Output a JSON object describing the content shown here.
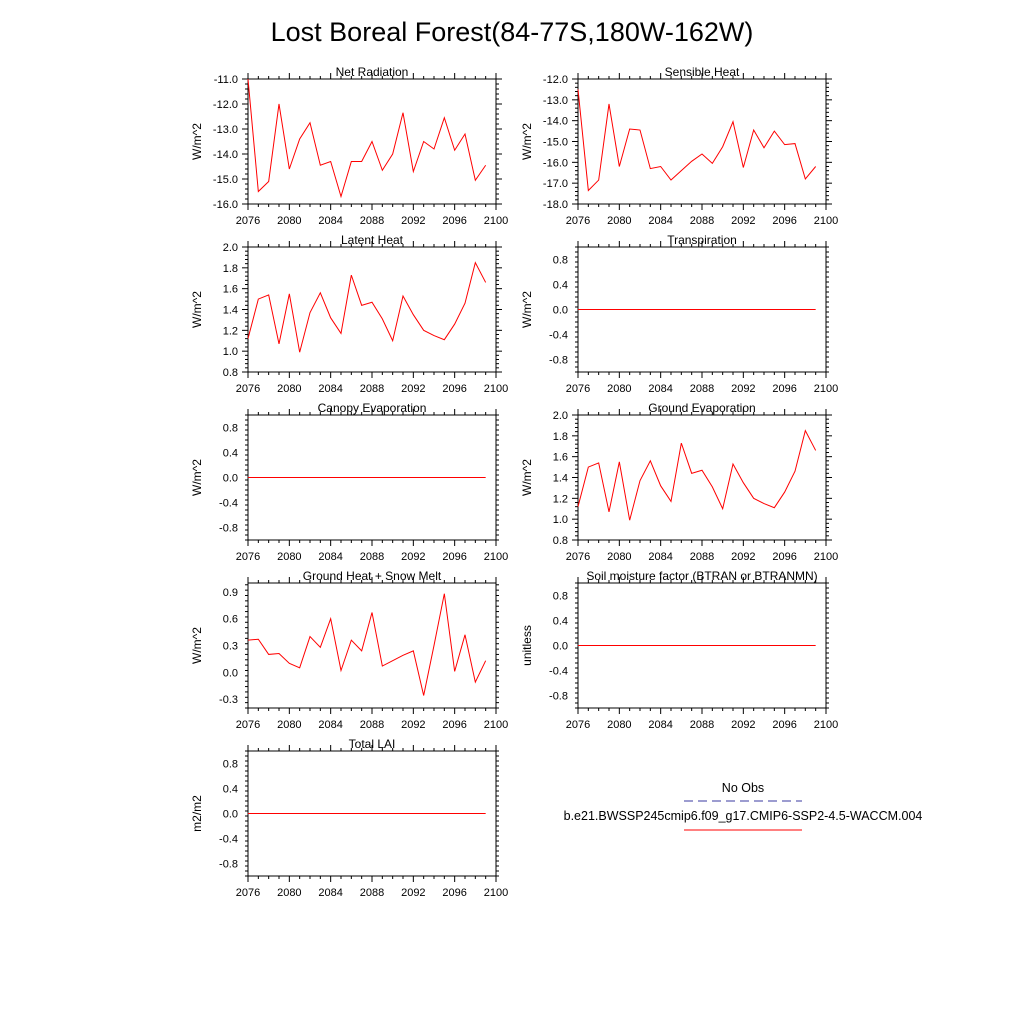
{
  "figure": {
    "title": "Lost Boreal Forest(84-77S,180W-162W)"
  },
  "legend": {
    "items": [
      {
        "label": "No Obs",
        "color": "#3a3aa0",
        "style": "dashed"
      },
      {
        "label": "b.e21.BWSSP245cmip6.f09_g17.CMIP6-SSP2-4.5-WACCM.004",
        "color": "#ff0000",
        "style": "solid"
      }
    ]
  },
  "chart_data": [
    {
      "type": "line",
      "title": "Net Radiation",
      "ylabel": "W/m^2",
      "xlim": [
        2076,
        2100
      ],
      "ylim": [
        -16,
        -11
      ],
      "xticks": [
        2076,
        2080,
        2084,
        2088,
        2092,
        2096,
        2100
      ],
      "xtick_labels": [
        "2076",
        "2080",
        "2084",
        "2088",
        "2092",
        "2096",
        "2100"
      ],
      "yticks": [
        -16,
        -15,
        -14,
        -13,
        -12,
        -11
      ],
      "ytick_labels": [
        "-16.0",
        "-15.0",
        "-14.0",
        "-13.0",
        "-12.0",
        "-11.0"
      ],
      "series": [
        {
          "color": "#ff0000",
          "x": [
            2076,
            2077,
            2078,
            2079,
            2080,
            2081,
            2082,
            2083,
            2084,
            2085,
            2086,
            2087,
            2088,
            2089,
            2090,
            2091,
            2092,
            2093,
            2094,
            2095,
            2096,
            2097,
            2098,
            2099
          ],
          "y": [
            -11.0,
            -15.5,
            -15.1,
            -12.0,
            -14.6,
            -13.4,
            -12.75,
            -14.45,
            -14.3,
            -15.7,
            -14.3,
            -14.3,
            -13.5,
            -14.65,
            -14.0,
            -12.35,
            -14.7,
            -13.5,
            -13.8,
            -12.55,
            -13.85,
            -13.2,
            -15.05,
            -14.45
          ]
        }
      ]
    },
    {
      "type": "line",
      "title": "Sensible Heat",
      "ylabel": "W/m^2",
      "xlim": [
        2076,
        2100
      ],
      "ylim": [
        -18,
        -12
      ],
      "xticks": [
        2076,
        2080,
        2084,
        2088,
        2092,
        2096,
        2100
      ],
      "xtick_labels": [
        "2076",
        "2080",
        "2084",
        "2088",
        "2092",
        "2096",
        "2100"
      ],
      "yticks": [
        -18,
        -17,
        -16,
        -15,
        -14,
        -13,
        -12
      ],
      "ytick_labels": [
        "-18.0",
        "-17.0",
        "-16.0",
        "-15.0",
        "-14.0",
        "-13.0",
        "-12.0"
      ],
      "series": [
        {
          "color": "#ff0000",
          "x": [
            2076,
            2077,
            2078,
            2079,
            2080,
            2081,
            2082,
            2083,
            2084,
            2085,
            2086,
            2087,
            2088,
            2089,
            2090,
            2091,
            2092,
            2093,
            2094,
            2095,
            2096,
            2097,
            2098,
            2099
          ],
          "y": [
            -12.5,
            -17.35,
            -16.85,
            -13.2,
            -16.2,
            -14.4,
            -14.45,
            -16.3,
            -16.2,
            -16.85,
            -16.4,
            -15.95,
            -15.6,
            -16.05,
            -15.25,
            -14.05,
            -16.25,
            -14.45,
            -15.3,
            -14.5,
            -15.15,
            -15.1,
            -16.8,
            -16.2
          ]
        }
      ]
    },
    {
      "type": "line",
      "title": "Latent Heat",
      "ylabel": "W/m^2",
      "xlim": [
        2076,
        2100
      ],
      "ylim": [
        0.8,
        2.0
      ],
      "xticks": [
        2076,
        2080,
        2084,
        2088,
        2092,
        2096,
        2100
      ],
      "xtick_labels": [
        "2076",
        "2080",
        "2084",
        "2088",
        "2092",
        "2096",
        "2100"
      ],
      "yticks": [
        0.8,
        1.0,
        1.2,
        1.4,
        1.6,
        1.8,
        2.0
      ],
      "ytick_labels": [
        "0.8",
        "1.0",
        "1.2",
        "1.4",
        "1.6",
        "1.8",
        "2.0"
      ],
      "series": [
        {
          "color": "#ff0000",
          "x": [
            2076,
            2077,
            2078,
            2079,
            2080,
            2081,
            2082,
            2083,
            2084,
            2085,
            2086,
            2087,
            2088,
            2089,
            2090,
            2091,
            2092,
            2093,
            2094,
            2095,
            2096,
            2097,
            2098,
            2099
          ],
          "y": [
            1.12,
            1.5,
            1.54,
            1.07,
            1.55,
            0.99,
            1.37,
            1.56,
            1.32,
            1.17,
            1.73,
            1.44,
            1.47,
            1.31,
            1.1,
            1.53,
            1.35,
            1.2,
            1.15,
            1.11,
            1.26,
            1.46,
            1.85,
            1.66
          ]
        }
      ]
    },
    {
      "type": "line",
      "title": "Transpiration",
      "ylabel": "W/m^2",
      "xlim": [
        2076,
        2100
      ],
      "ylim": [
        -1.0,
        1.0
      ],
      "xticks": [
        2076,
        2080,
        2084,
        2088,
        2092,
        2096,
        2100
      ],
      "xtick_labels": [
        "2076",
        "2080",
        "2084",
        "2088",
        "2092",
        "2096",
        "2100"
      ],
      "yticks": [
        -0.8,
        -0.4,
        0.0,
        0.4,
        0.8
      ],
      "ytick_labels": [
        "-0.8",
        "-0.4",
        "0.0",
        "0.4",
        "0.8"
      ],
      "series": [
        {
          "color": "#ff0000",
          "x": [
            2076,
            2077,
            2078,
            2079,
            2080,
            2081,
            2082,
            2083,
            2084,
            2085,
            2086,
            2087,
            2088,
            2089,
            2090,
            2091,
            2092,
            2093,
            2094,
            2095,
            2096,
            2097,
            2098,
            2099
          ],
          "y": [
            0,
            0,
            0,
            0,
            0,
            0,
            0,
            0,
            0,
            0,
            0,
            0,
            0,
            0,
            0,
            0,
            0,
            0,
            0,
            0,
            0,
            0,
            0,
            0
          ]
        }
      ]
    },
    {
      "type": "line",
      "title": "Canopy Evaporation",
      "ylabel": "W/m^2",
      "xlim": [
        2076,
        2100
      ],
      "ylim": [
        -1.0,
        1.0
      ],
      "xticks": [
        2076,
        2080,
        2084,
        2088,
        2092,
        2096,
        2100
      ],
      "xtick_labels": [
        "2076",
        "2080",
        "2084",
        "2088",
        "2092",
        "2096",
        "2100"
      ],
      "yticks": [
        -0.8,
        -0.4,
        0.0,
        0.4,
        0.8
      ],
      "ytick_labels": [
        "-0.8",
        "-0.4",
        "0.0",
        "0.4",
        "0.8"
      ],
      "series": [
        {
          "color": "#ff0000",
          "x": [
            2076,
            2077,
            2078,
            2079,
            2080,
            2081,
            2082,
            2083,
            2084,
            2085,
            2086,
            2087,
            2088,
            2089,
            2090,
            2091,
            2092,
            2093,
            2094,
            2095,
            2096,
            2097,
            2098,
            2099
          ],
          "y": [
            0,
            0,
            0,
            0,
            0,
            0,
            0,
            0,
            0,
            0,
            0,
            0,
            0,
            0,
            0,
            0,
            0,
            0,
            0,
            0,
            0,
            0,
            0,
            0
          ]
        }
      ]
    },
    {
      "type": "line",
      "title": "Ground Evaporation",
      "ylabel": "W/m^2",
      "xlim": [
        2076,
        2100
      ],
      "ylim": [
        0.8,
        2.0
      ],
      "xticks": [
        2076,
        2080,
        2084,
        2088,
        2092,
        2096,
        2100
      ],
      "xtick_labels": [
        "2076",
        "2080",
        "2084",
        "2088",
        "2092",
        "2096",
        "2100"
      ],
      "yticks": [
        0.8,
        1.0,
        1.2,
        1.4,
        1.6,
        1.8,
        2.0
      ],
      "ytick_labels": [
        "0.8",
        "1.0",
        "1.2",
        "1.4",
        "1.6",
        "1.8",
        "2.0"
      ],
      "series": [
        {
          "color": "#ff0000",
          "x": [
            2076,
            2077,
            2078,
            2079,
            2080,
            2081,
            2082,
            2083,
            2084,
            2085,
            2086,
            2087,
            2088,
            2089,
            2090,
            2091,
            2092,
            2093,
            2094,
            2095,
            2096,
            2097,
            2098,
            2099
          ],
          "y": [
            1.12,
            1.5,
            1.54,
            1.07,
            1.55,
            0.99,
            1.37,
            1.56,
            1.32,
            1.17,
            1.73,
            1.44,
            1.47,
            1.31,
            1.1,
            1.53,
            1.35,
            1.2,
            1.15,
            1.11,
            1.26,
            1.46,
            1.85,
            1.66
          ]
        }
      ]
    },
    {
      "type": "line",
      "title": "Ground Heat + Snow Melt",
      "ylabel": "W/m^2",
      "xlim": [
        2076,
        2100
      ],
      "ylim": [
        -0.4,
        1.0
      ],
      "xticks": [
        2076,
        2080,
        2084,
        2088,
        2092,
        2096,
        2100
      ],
      "xtick_labels": [
        "2076",
        "2080",
        "2084",
        "2088",
        "2092",
        "2096",
        "2100"
      ],
      "yticks": [
        -0.3,
        0.0,
        0.3,
        0.6,
        0.9
      ],
      "ytick_labels": [
        "-0.3",
        "0.0",
        "0.3",
        "0.6",
        "0.9"
      ],
      "series": [
        {
          "color": "#ff0000",
          "x": [
            2076,
            2077,
            2078,
            2079,
            2080,
            2081,
            2082,
            2083,
            2084,
            2085,
            2086,
            2087,
            2088,
            2089,
            2090,
            2091,
            2092,
            2093,
            2094,
            2095,
            2096,
            2097,
            2098,
            2099
          ],
          "y": [
            0.36,
            0.37,
            0.2,
            0.21,
            0.1,
            0.05,
            0.4,
            0.28,
            0.6,
            0.02,
            0.36,
            0.24,
            0.67,
            0.07,
            0.13,
            0.19,
            0.24,
            -0.26,
            0.3,
            0.88,
            0.01,
            0.42,
            -0.11,
            0.13
          ]
        }
      ]
    },
    {
      "type": "line",
      "title": "Soil moisture factor (BTRAN or BTRANMN)",
      "ylabel": "unitless",
      "xlim": [
        2076,
        2100
      ],
      "ylim": [
        -1.0,
        1.0
      ],
      "xticks": [
        2076,
        2080,
        2084,
        2088,
        2092,
        2096,
        2100
      ],
      "xtick_labels": [
        "2076",
        "2080",
        "2084",
        "2088",
        "2092",
        "2096",
        "2100"
      ],
      "yticks": [
        -0.8,
        -0.4,
        0.0,
        0.4,
        0.8
      ],
      "ytick_labels": [
        "-0.8",
        "-0.4",
        "0.0",
        "0.4",
        "0.8"
      ],
      "series": [
        {
          "color": "#ff0000",
          "x": [
            2076,
            2077,
            2078,
            2079,
            2080,
            2081,
            2082,
            2083,
            2084,
            2085,
            2086,
            2087,
            2088,
            2089,
            2090,
            2091,
            2092,
            2093,
            2094,
            2095,
            2096,
            2097,
            2098,
            2099
          ],
          "y": [
            0,
            0,
            0,
            0,
            0,
            0,
            0,
            0,
            0,
            0,
            0,
            0,
            0,
            0,
            0,
            0,
            0,
            0,
            0,
            0,
            0,
            0,
            0,
            0
          ]
        }
      ]
    },
    {
      "type": "line",
      "title": "Total LAI",
      "ylabel": "m2/m2",
      "xlim": [
        2076,
        2100
      ],
      "ylim": [
        -1.0,
        1.0
      ],
      "xticks": [
        2076,
        2080,
        2084,
        2088,
        2092,
        2096,
        2100
      ],
      "xtick_labels": [
        "2076",
        "2080",
        "2084",
        "2088",
        "2092",
        "2096",
        "2100"
      ],
      "yticks": [
        -0.8,
        -0.4,
        0.0,
        0.4,
        0.8
      ],
      "ytick_labels": [
        "-0.8",
        "-0.4",
        "0.0",
        "0.4",
        "0.8"
      ],
      "series": [
        {
          "color": "#ff0000",
          "x": [
            2076,
            2077,
            2078,
            2079,
            2080,
            2081,
            2082,
            2083,
            2084,
            2085,
            2086,
            2087,
            2088,
            2089,
            2090,
            2091,
            2092,
            2093,
            2094,
            2095,
            2096,
            2097,
            2098,
            2099
          ],
          "y": [
            0,
            0,
            0,
            0,
            0,
            0,
            0,
            0,
            0,
            0,
            0,
            0,
            0,
            0,
            0,
            0,
            0,
            0,
            0,
            0,
            0,
            0,
            0,
            0
          ]
        }
      ]
    }
  ]
}
